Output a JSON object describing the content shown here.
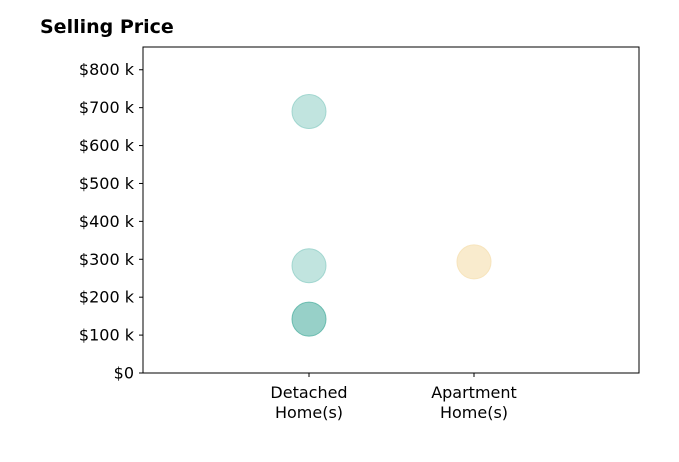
{
  "chart_data": {
    "type": "scatter",
    "title": "Selling Price",
    "xlabel": "",
    "ylabel": "",
    "categories": [
      [
        "Detached",
        "Home(s)"
      ],
      [
        "Apartment",
        "Home(s)"
      ]
    ],
    "ylim": [
      0,
      860
    ],
    "yticks": [
      0,
      100,
      200,
      300,
      400,
      500,
      600,
      700,
      800
    ],
    "ytick_labels": [
      "$0",
      "$100 k",
      "$200 k",
      "$300 k",
      "$400 k",
      "$500 k",
      "$600 k",
      "$700 k",
      "$800 k"
    ],
    "grid": false,
    "points": [
      {
        "category": 0,
        "y": 690,
        "color": "#8ecdc5",
        "opacity": 0.55
      },
      {
        "category": 0,
        "y": 283,
        "color": "#8ecdc5",
        "opacity": 0.55
      },
      {
        "category": 0,
        "y": 142,
        "color": "#52b1a3",
        "opacity": 0.6
      },
      {
        "category": 1,
        "y": 293,
        "color": "#f6e2b8",
        "opacity": 0.7
      }
    ]
  }
}
